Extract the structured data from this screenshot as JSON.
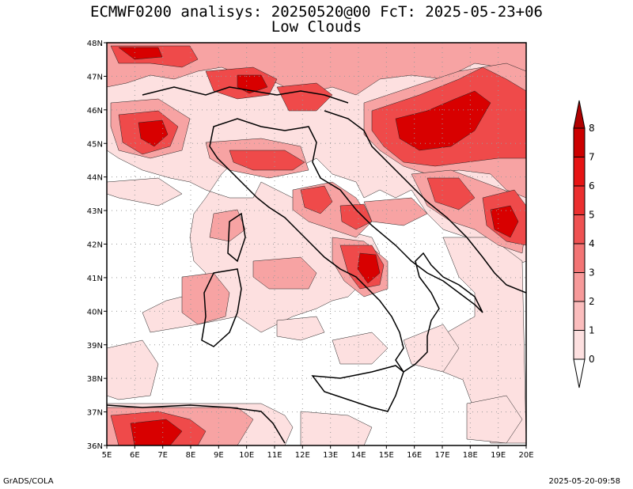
{
  "header": {
    "title_line1": "ECMWF0200 analisys: 20250520@00 FcT: 2025-05-23+06",
    "title_line2": "Low Clouds"
  },
  "footer": {
    "credit": "GrADS/COLA",
    "timestamp": "2025-05-20-09:58"
  },
  "map": {
    "lon_labels": [
      "5E",
      "6E",
      "7E",
      "8E",
      "9E",
      "10E",
      "11E",
      "12E",
      "13E",
      "14E",
      "15E",
      "16E",
      "17E",
      "18E",
      "19E",
      "20E"
    ],
    "lat_labels": [
      "48N",
      "47N",
      "46N",
      "45N",
      "44N",
      "43N",
      "42N",
      "41N",
      "40N",
      "39N",
      "38N",
      "37N",
      "36N"
    ],
    "lon_range": [
      5,
      20
    ],
    "lat_range": [
      36,
      48
    ],
    "grid": "dotted"
  },
  "colorbar": {
    "labels": [
      "0",
      "1",
      "2",
      "3",
      "4",
      "5",
      "6",
      "7",
      "8"
    ],
    "colors": [
      "#ffffff",
      "#fde0e0",
      "#fbbdbd",
      "#f79a9a",
      "#f37575",
      "#ef5252",
      "#eb2f2f",
      "#e61414",
      "#cc0000",
      "#b00000"
    ]
  }
}
